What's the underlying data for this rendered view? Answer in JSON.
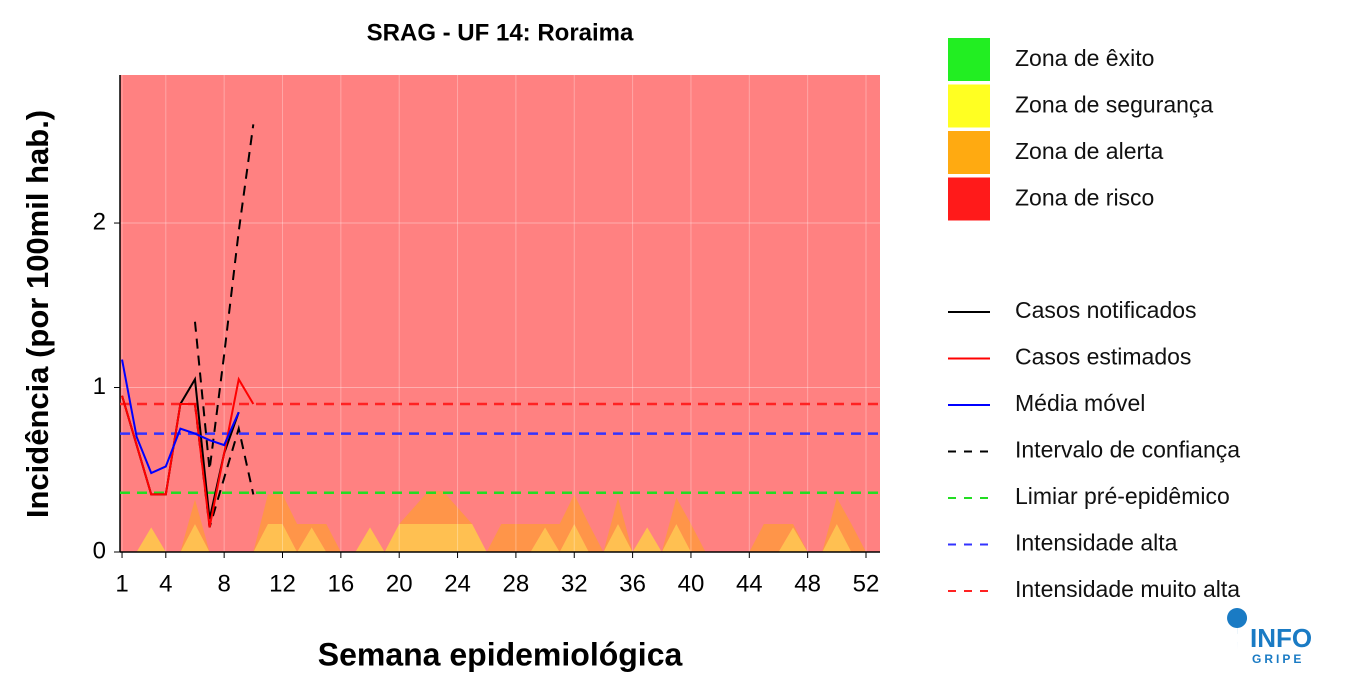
{
  "chart_data": {
    "type": "line",
    "title": "SRAG - UF 14: Roraima",
    "x_label": "Semana epidemiológica",
    "y_label": "Incidência (por 100mil hab.)",
    "x": [
      1,
      2,
      3,
      4,
      5,
      6,
      7,
      8,
      9,
      10,
      11,
      12,
      13,
      14,
      15,
      16,
      17,
      18,
      19,
      20,
      21,
      22,
      23,
      24,
      25,
      26,
      27,
      28,
      29,
      30,
      31,
      32,
      33,
      34,
      35,
      36,
      37,
      38,
      39,
      40,
      41,
      42,
      43,
      44,
      45,
      46,
      47,
      48,
      49,
      50,
      51,
      52
    ],
    "xlim": [
      0.86,
      52.96
    ],
    "xticks": [
      1,
      4,
      8,
      12,
      16,
      20,
      24,
      28,
      32,
      36,
      40,
      44,
      48,
      52
    ],
    "ylim": [
      0,
      2.9
    ],
    "yticks": [
      0,
      1,
      2
    ],
    "grid": true,
    "zones": [
      {
        "name": "Zona de êxito",
        "color": "#22ee22"
      },
      {
        "name": "Zona de segurança",
        "color": "#ffff22",
        "values": [
          0,
          0,
          0.15,
          0,
          0,
          0.17,
          0,
          0,
          0,
          0,
          0.17,
          0.17,
          0,
          0.15,
          0,
          0,
          0,
          0.15,
          0,
          0.17,
          0.17,
          0.17,
          0.17,
          0.17,
          0.17,
          0,
          0,
          0,
          0,
          0.15,
          0,
          0.17,
          0,
          0,
          0.17,
          0,
          0.15,
          0,
          0.17,
          0,
          0,
          0,
          0,
          0,
          0,
          0,
          0.15,
          0,
          0,
          0.17,
          0,
          0
        ]
      },
      {
        "name": "Zona de alerta",
        "color": "#ffaa11",
        "values": [
          0,
          0,
          0,
          0,
          0,
          0.15,
          0,
          0,
          0,
          0,
          0.18,
          0.18,
          0.17,
          0.02,
          0.17,
          0,
          0,
          0,
          0,
          0,
          0.1,
          0.2,
          0.2,
          0.1,
          0,
          0,
          0.17,
          0.17,
          0.17,
          0.02,
          0.17,
          0.18,
          0.17,
          0,
          0.16,
          0,
          0,
          0,
          0.16,
          0.17,
          0,
          0,
          0,
          0,
          0.17,
          0.17,
          0.02,
          0,
          0,
          0.16,
          0.17,
          0
        ]
      },
      {
        "name": "Zona de risco",
        "color": "#ff1a1a"
      }
    ],
    "series": [
      {
        "name": "Casos notificados",
        "color": "#000000",
        "values": [
          0.95,
          0.65,
          0.35,
          0.35,
          0.9,
          1.05,
          0.2,
          0.6,
          0.85,
          null,
          null,
          null,
          null,
          null,
          null,
          null,
          null,
          null,
          null,
          null,
          null,
          null,
          null,
          null,
          null,
          null,
          null,
          null,
          null,
          null,
          null,
          null,
          null,
          null,
          null,
          null,
          null,
          null,
          null,
          null,
          null,
          null,
          null,
          null,
          null,
          null,
          null,
          null,
          null,
          null,
          null,
          null
        ]
      },
      {
        "name": "Casos estimados",
        "color": "#ff0000",
        "values": [
          0.95,
          0.65,
          0.35,
          0.35,
          0.9,
          0.9,
          0.15,
          0.6,
          1.05,
          0.9,
          null,
          null,
          null,
          null,
          null,
          null,
          null,
          null,
          null,
          null,
          null,
          null,
          null,
          null,
          null,
          null,
          null,
          null,
          null,
          null,
          null,
          null,
          null,
          null,
          null,
          null,
          null,
          null,
          null,
          null,
          null,
          null,
          null,
          null,
          null,
          null,
          null,
          null,
          null,
          null,
          null,
          null
        ]
      },
      {
        "name": "Média móvel",
        "color": "#0000ff",
        "values": [
          1.17,
          0.7,
          0.48,
          0.52,
          0.75,
          0.72,
          0.68,
          0.65,
          0.85,
          null,
          null,
          null,
          null,
          null,
          null,
          null,
          null,
          null,
          null,
          null,
          null,
          null,
          null,
          null,
          null,
          null,
          null,
          null,
          null,
          null,
          null,
          null,
          null,
          null,
          null,
          null,
          null,
          null,
          null,
          null,
          null,
          null,
          null,
          null,
          null,
          null,
          null,
          null,
          null,
          null,
          null,
          null
        ]
      }
    ],
    "interval": {
      "name": "Intervalo de confiança",
      "color": "#000000",
      "lower": [
        null,
        null,
        null,
        null,
        null,
        0.9,
        0.15,
        0.45,
        0.75,
        0.35,
        null,
        null,
        null,
        null,
        null,
        null,
        null,
        null,
        null,
        null,
        null,
        null,
        null,
        null,
        null,
        null,
        null,
        null,
        null,
        null,
        null,
        null,
        null,
        null,
        null,
        null,
        null,
        null,
        null,
        null,
        null,
        null,
        null,
        null,
        null,
        null,
        null,
        null,
        null,
        null,
        null,
        null
      ],
      "upper": [
        null,
        null,
        null,
        null,
        null,
        1.4,
        0.5,
        1.2,
        1.95,
        2.6,
        null,
        null,
        null,
        null,
        null,
        null,
        null,
        null,
        null,
        null,
        null,
        null,
        null,
        null,
        null,
        null,
        null,
        null,
        null,
        null,
        null,
        null,
        null,
        null,
        null,
        null,
        null,
        null,
        null,
        null,
        null,
        null,
        null,
        null,
        null,
        null,
        null,
        null,
        null,
        null,
        null,
        null
      ]
    },
    "thresholds": [
      {
        "name": "Limiar pré-epidêmico",
        "color": "#22dd22",
        "value": 0.36
      },
      {
        "name": "Intensidade alta",
        "color": "#3333ff",
        "value": 0.72
      },
      {
        "name": "Intensidade muito alta",
        "color": "#ff2222",
        "value": 0.9
      }
    ],
    "logo": {
      "top": "INFO",
      "bottom": "GRIPE"
    }
  }
}
